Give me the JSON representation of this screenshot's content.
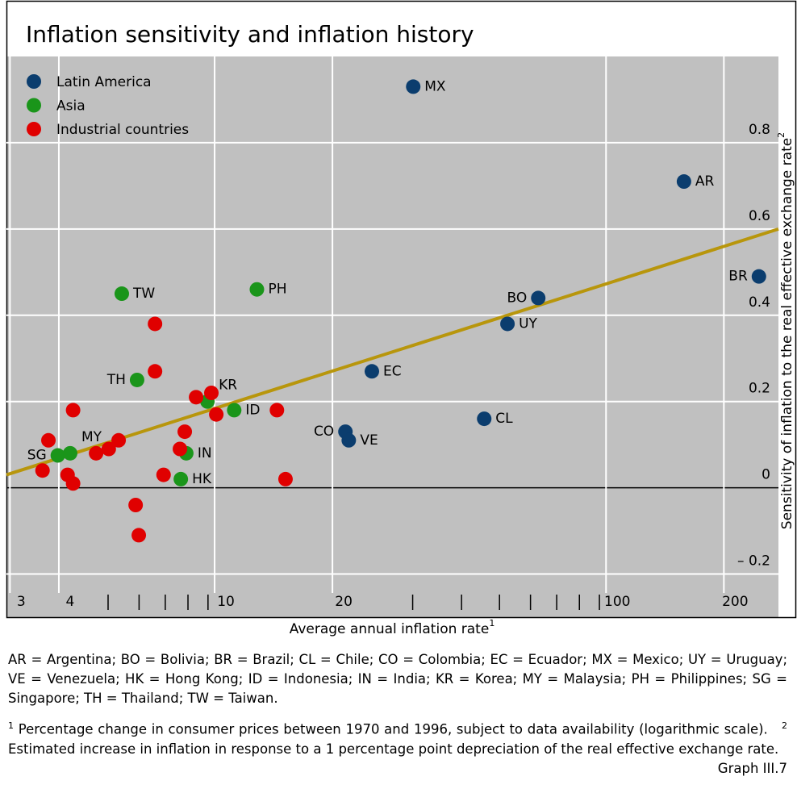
{
  "chart_data": {
    "type": "scatter",
    "title": "Inflation sensitivity and inflation history",
    "x_label": "Average annual inflation rate",
    "x_label_note": "1",
    "y_label": "Sensitivity of inflation to the real effective exchange rate",
    "y_label_note": "2",
    "x_log": true,
    "grid": true,
    "legend": "upper left",
    "xlim": [
      2.75,
      258
    ],
    "xticks": [
      3,
      4,
      10,
      20,
      100,
      200
    ],
    "xminorticks": [
      5,
      6,
      7,
      8,
      9,
      30,
      40,
      50,
      60,
      70,
      80,
      90
    ],
    "ylim": [
      -0.3,
      1.0
    ],
    "yticks": [
      {
        "value": -0.2,
        "label": "– 0.2"
      },
      0,
      0.2,
      0.4,
      0.6,
      0.8
    ],
    "trend": {
      "color": "#b8960c",
      "x": [
        2.75,
        258
      ],
      "values": [
        0.03,
        0.6
      ]
    },
    "series": [
      {
        "name": "Latin America",
        "color": "#0b3d6e",
        "labels": [
          "MX",
          "AR",
          "BR",
          "BO",
          "UY",
          "EC",
          "CL",
          "CO",
          "VE"
        ],
        "x": [
          30.1,
          148,
          230,
          62.8,
          52.4,
          23.6,
          45.7,
          20.2,
          20.6
        ],
        "values": [
          0.93,
          0.71,
          0.49,
          0.44,
          0.38,
          0.27,
          0.16,
          0.13,
          0.11
        ]
      },
      {
        "name": "Asia",
        "color": "#1a951a",
        "labels": [
          "TW",
          "PH",
          "TH",
          "KR",
          "ID",
          "MY",
          "SG",
          "IN",
          "HK"
        ],
        "x": [
          5.42,
          12.0,
          5.93,
          8.97,
          10.5,
          4.0,
          3.72,
          7.92,
          7.67
        ],
        "values": [
          0.45,
          0.46,
          0.25,
          0.2,
          0.18,
          0.08,
          0.075,
          0.08,
          0.02
        ]
      },
      {
        "name": "Industrial countries",
        "color": "#e00000",
        "x": [
          6.59,
          6.59,
          4.07,
          8.39,
          9.18,
          9.45,
          13.5,
          7.85,
          7.63,
          3.52,
          5.32,
          5.02,
          4.66,
          3.4,
          3.94,
          4.07,
          6.93,
          14.2,
          5.88,
          5.99
        ],
        "values": [
          0.38,
          0.27,
          0.18,
          0.21,
          0.22,
          0.17,
          0.18,
          0.13,
          0.09,
          0.11,
          0.11,
          0.09,
          0.08,
          0.04,
          0.03,
          0.01,
          0.03,
          0.02,
          -0.04,
          -0.11
        ]
      }
    ]
  },
  "footer": {
    "abbreviations": "AR = Argentina; BO = Bolivia; BR = Brazil; CL = Chile; CO = Colombia; EC = Ecuador; MX = Mexico; UY = Uruguay; VE = Venezuela; HK = Hong Kong; ID = Indonesia; IN = India; KR = Korea; MY = Malaysia; PH = Philippines; SG = Singapore; TH = Thailand; TW = Taiwan.",
    "notes": [
      {
        "marker": "1",
        "text": "Percentage change in consumer prices between 1970 and 1996, subject to data availability (logarithmic scale)."
      },
      {
        "marker": "2",
        "text": "Estimated increase in inflation in response to a 1 percentage point depreciation of the real effective exchange rate."
      }
    ],
    "source": "Graph III.7"
  }
}
